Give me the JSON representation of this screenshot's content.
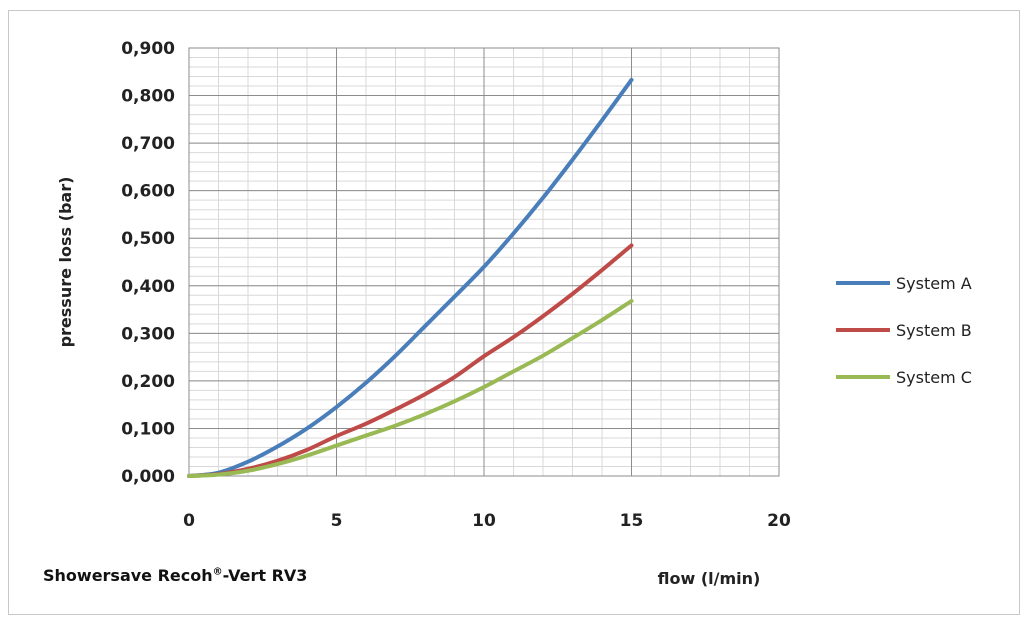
{
  "caption": {
    "prefix": "Showersave Recoh",
    "superscript": "®",
    "suffix": "-Vert RV3"
  },
  "chart_data": {
    "type": "line",
    "xlabel": "flow (l/min)",
    "ylabel": "pressure loss (bar)",
    "xlim": [
      0,
      20
    ],
    "ylim": [
      0,
      0.9
    ],
    "x_ticks": [
      "0",
      "5",
      "10",
      "15",
      "20"
    ],
    "y_ticks": [
      "0,000",
      "0,100",
      "0,200",
      "0,300",
      "0,400",
      "0,500",
      "0,600",
      "0,700",
      "0,800",
      "0,900"
    ],
    "grid": true,
    "legend_position": "right",
    "x": [
      0,
      1,
      2,
      3,
      4,
      5,
      6,
      7,
      8,
      9,
      10,
      11,
      12,
      13,
      14,
      15
    ],
    "series": [
      {
        "name": "System A",
        "color": "#4a7ebb",
        "values": [
          0.0,
          0.007,
          0.03,
          0.062,
          0.1,
          0.145,
          0.196,
          0.253,
          0.315,
          0.377,
          0.44,
          0.51,
          0.585,
          0.665,
          0.748,
          0.833
        ]
      },
      {
        "name": "System B",
        "color": "#be4b48",
        "values": [
          0.0,
          0.004,
          0.015,
          0.032,
          0.055,
          0.084,
          0.11,
          0.14,
          0.172,
          0.208,
          0.252,
          0.292,
          0.336,
          0.383,
          0.433,
          0.485
        ]
      },
      {
        "name": "System C",
        "color": "#98b954",
        "values": [
          0.0,
          0.003,
          0.011,
          0.025,
          0.043,
          0.064,
          0.085,
          0.106,
          0.13,
          0.157,
          0.187,
          0.22,
          0.253,
          0.29,
          0.328,
          0.368
        ]
      }
    ]
  }
}
